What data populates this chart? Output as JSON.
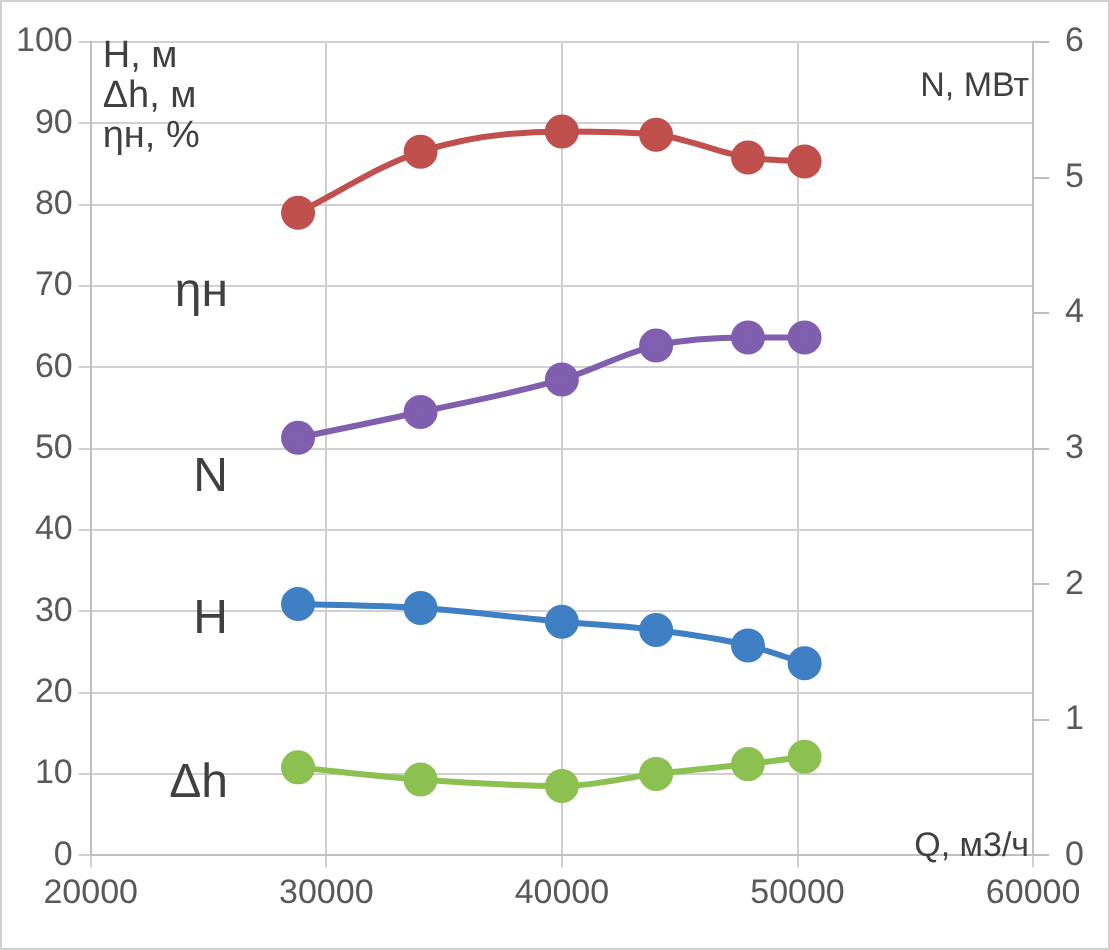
{
  "chart_data": {
    "type": "line",
    "xlabel": "Q, м3/ч",
    "ylabel": "H, м\nΔh, м\nηн, %",
    "y2label": "N, МВт",
    "x": [
      28800,
      34000,
      40000,
      44000,
      47900,
      50300
    ],
    "series": [
      {
        "name": "ηн",
        "color": "#c0504d",
        "values": [
          79,
          86.5,
          89,
          88.6,
          85.8,
          85.3
        ]
      },
      {
        "name": "N",
        "color": "#7f5fae",
        "axis": "y2",
        "values": [
          3.08,
          3.27,
          3.51,
          3.76,
          3.82,
          3.82
        ]
      },
      {
        "name": "H",
        "color": "#3f7fc4",
        "values": [
          30.9,
          30.4,
          28.7,
          27.7,
          25.8,
          23.6
        ]
      },
      {
        "name": "Δh",
        "color": "#8cc152",
        "values": [
          10.8,
          9.3,
          8.5,
          10.0,
          11.2,
          12.1
        ]
      }
    ],
    "xlim": [
      20000,
      60000
    ],
    "xticks": [
      20000,
      30000,
      40000,
      50000,
      60000
    ],
    "ylim": [
      0,
      100
    ],
    "yticks": [
      0,
      10,
      20,
      30,
      40,
      50,
      60,
      70,
      80,
      90,
      100
    ],
    "y2lim": [
      0,
      6
    ],
    "y2ticks": [
      0,
      1,
      2,
      3,
      4,
      5,
      6
    ],
    "grid": true,
    "legend": false,
    "marker": "circle",
    "line_style": "solid"
  }
}
